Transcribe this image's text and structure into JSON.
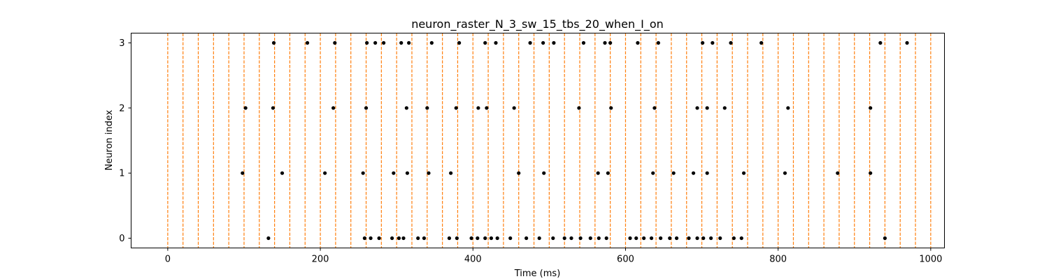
{
  "chart_data": {
    "type": "scatter",
    "title": "neuron_raster_N_3_sw_15_tbs_20_when_I_on",
    "xlabel": "Time (ms)",
    "ylabel": "Neuron index",
    "xlim": [
      -48,
      1018
    ],
    "ylim": [
      -0.15,
      3.15
    ],
    "x_ticks": [
      0,
      200,
      400,
      600,
      800,
      1000
    ],
    "x_tick_labels": [
      "0",
      "200",
      "400",
      "600",
      "800",
      "1000"
    ],
    "y_ticks": [
      0,
      1,
      2,
      3
    ],
    "y_tick_labels": [
      "0",
      "1",
      "2",
      "3"
    ],
    "grid": false,
    "legend": "none",
    "marker_color": "#000000",
    "vline_color": "#ff7f0e",
    "vline_style": "dashed",
    "vlines_x": [
      0,
      20,
      40,
      60,
      80,
      100,
      120,
      140,
      160,
      180,
      200,
      220,
      240,
      260,
      280,
      300,
      320,
      340,
      360,
      380,
      400,
      420,
      440,
      460,
      480,
      500,
      520,
      540,
      560,
      580,
      600,
      620,
      640,
      660,
      680,
      700,
      720,
      740,
      760,
      780,
      800,
      820,
      840,
      860,
      880,
      900,
      920,
      940,
      960,
      980,
      1000
    ],
    "series": [
      {
        "neuron": 0,
        "spike_times": [
          132,
          258,
          266,
          277,
          294,
          303,
          309,
          328,
          336,
          369,
          379,
          398,
          406,
          416,
          424,
          432,
          449,
          470,
          487,
          505,
          520,
          529,
          541,
          554,
          565,
          575,
          606,
          614,
          624,
          634,
          646,
          658,
          667,
          683,
          694,
          702,
          712,
          724,
          742,
          752,
          940
        ]
      },
      {
        "neuron": 1,
        "spike_times": [
          98,
          150,
          206,
          256,
          296,
          314,
          342,
          371,
          460,
          493,
          564,
          577,
          636,
          663,
          689,
          707,
          755,
          809,
          878,
          921
        ]
      },
      {
        "neuron": 2,
        "spike_times": [
          102,
          138,
          217,
          260,
          313,
          340,
          378,
          407,
          418,
          454,
          539,
          581,
          638,
          694,
          707,
          730,
          813,
          921
        ]
      },
      {
        "neuron": 3,
        "spike_times": [
          139,
          183,
          219,
          261,
          272,
          283,
          306,
          316,
          346,
          382,
          416,
          430,
          475,
          492,
          506,
          545,
          573,
          580,
          616,
          643,
          701,
          714,
          738,
          778,
          934,
          969
        ]
      }
    ]
  }
}
